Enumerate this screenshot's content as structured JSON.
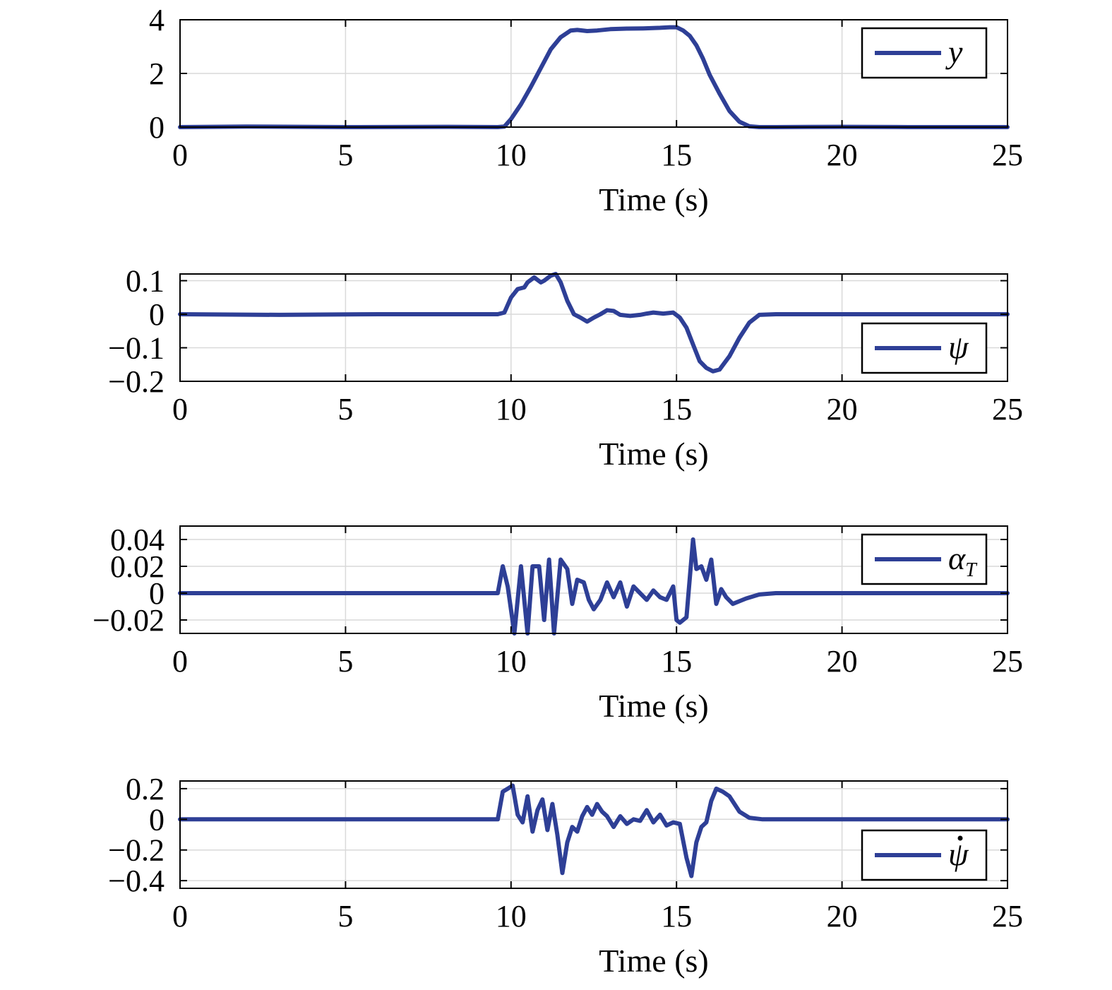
{
  "style": {
    "line_color": "#2e3f96",
    "grid_color": "#d9d9d9",
    "axis_color": "#000000"
  },
  "chart_data": [
    {
      "type": "line",
      "xlabel": "Time (s)",
      "ylabel": "",
      "xlim": [
        0,
        25
      ],
      "ylim": [
        0,
        4
      ],
      "xticks": [
        0,
        5,
        10,
        15,
        20,
        25
      ],
      "xtick_labels": [
        "0",
        "5",
        "10",
        "15",
        "20",
        "25"
      ],
      "yticks": [
        0,
        2,
        4
      ],
      "ytick_labels": [
        "0",
        "2",
        "4"
      ],
      "grid": true,
      "legend": {
        "position": "top-right",
        "main": "y",
        "sub": "",
        "dot": false
      },
      "series": [
        {
          "name": "y",
          "x": [
            0,
            2,
            5,
            8,
            9.6,
            9.8,
            10,
            10.3,
            10.6,
            10.9,
            11.2,
            11.5,
            11.8,
            12.0,
            12.3,
            12.6,
            13,
            13.5,
            14,
            14.5,
            14.8,
            15.0,
            15.2,
            15.4,
            15.6,
            15.8,
            16.0,
            16.3,
            16.6,
            16.9,
            17.2,
            17.5,
            18,
            20,
            22,
            25
          ],
          "values": [
            0,
            0.02,
            0,
            0.01,
            0,
            0.02,
            0.3,
            0.85,
            1.5,
            2.2,
            2.9,
            3.35,
            3.6,
            3.62,
            3.58,
            3.6,
            3.65,
            3.67,
            3.68,
            3.7,
            3.72,
            3.72,
            3.6,
            3.4,
            3.05,
            2.55,
            1.95,
            1.25,
            0.6,
            0.2,
            0.03,
            0,
            0,
            0.01,
            0,
            0
          ]
        }
      ]
    },
    {
      "type": "line",
      "xlabel": "Time (s)",
      "ylabel": "",
      "xlim": [
        0,
        25
      ],
      "ylim": [
        -0.2,
        0.12
      ],
      "xticks": [
        0,
        5,
        10,
        15,
        20,
        25
      ],
      "xtick_labels": [
        "0",
        "5",
        "10",
        "15",
        "20",
        "25"
      ],
      "yticks": [
        -0.2,
        -0.1,
        0,
        0.1
      ],
      "ytick_labels": [
        "−0.2",
        "−0.1",
        "0",
        "0.1"
      ],
      "grid": true,
      "legend": {
        "position": "bottom-right",
        "main": "ψ",
        "sub": "",
        "dot": false
      },
      "series": [
        {
          "name": "ψ",
          "x": [
            0,
            3,
            6,
            9.6,
            9.8,
            10.0,
            10.2,
            10.4,
            10.5,
            10.7,
            10.9,
            11.0,
            11.2,
            11.35,
            11.5,
            11.7,
            11.9,
            12.1,
            12.3,
            12.5,
            12.7,
            12.9,
            13.1,
            13.3,
            13.6,
            13.9,
            14.1,
            14.3,
            14.6,
            14.9,
            15.1,
            15.3,
            15.5,
            15.7,
            15.9,
            16.1,
            16.3,
            16.6,
            16.9,
            17.2,
            17.5,
            18,
            20,
            22,
            25
          ],
          "values": [
            0,
            -0.002,
            0,
            0,
            0.005,
            0.05,
            0.075,
            0.08,
            0.095,
            0.11,
            0.095,
            0.1,
            0.115,
            0.12,
            0.095,
            0.04,
            0,
            -0.01,
            -0.022,
            -0.01,
            0,
            0.012,
            0.01,
            -0.002,
            -0.005,
            -0.002,
            0.002,
            0.005,
            0.002,
            0.005,
            -0.01,
            -0.04,
            -0.09,
            -0.14,
            -0.16,
            -0.17,
            -0.165,
            -0.125,
            -0.07,
            -0.025,
            -0.002,
            0,
            0,
            0,
            0
          ]
        }
      ]
    },
    {
      "type": "line",
      "xlabel": "Time (s)",
      "ylabel": "",
      "xlim": [
        0,
        25
      ],
      "ylim": [
        -0.03,
        0.05
      ],
      "xticks": [
        0,
        5,
        10,
        15,
        20,
        25
      ],
      "xtick_labels": [
        "0",
        "5",
        "10",
        "15",
        "20",
        "25"
      ],
      "yticks": [
        -0.02,
        0,
        0.02,
        0.04
      ],
      "ytick_labels": [
        "−0.02",
        "0",
        "0.02",
        "0.04"
      ],
      "grid": true,
      "legend": {
        "position": "top-right",
        "main": "α",
        "sub": "T",
        "dot": false
      },
      "series": [
        {
          "name": "αT",
          "x": [
            0,
            3,
            6,
            9.6,
            9.75,
            9.9,
            10.1,
            10.3,
            10.5,
            10.65,
            10.85,
            11.0,
            11.15,
            11.3,
            11.5,
            11.7,
            11.85,
            12.0,
            12.2,
            12.35,
            12.5,
            12.7,
            12.9,
            13.1,
            13.3,
            13.5,
            13.7,
            13.9,
            14.1,
            14.3,
            14.5,
            14.7,
            14.9,
            15.0,
            15.1,
            15.3,
            15.5,
            15.6,
            15.75,
            15.9,
            16.05,
            16.2,
            16.35,
            16.5,
            16.7,
            16.9,
            17.1,
            17.5,
            18,
            20,
            22,
            25
          ],
          "values": [
            0,
            0,
            0,
            0,
            0.02,
            0.005,
            -0.03,
            0.02,
            -0.03,
            0.02,
            0.02,
            -0.02,
            0.025,
            -0.03,
            0.025,
            0.018,
            -0.008,
            0.01,
            0.008,
            -0.005,
            -0.012,
            -0.005,
            0.008,
            -0.003,
            0.008,
            -0.01,
            0.005,
            0,
            -0.005,
            0.002,
            -0.003,
            -0.005,
            0.005,
            -0.02,
            -0.022,
            -0.018,
            0.04,
            0.018,
            0.02,
            0.01,
            0.025,
            -0.008,
            0.003,
            -0.003,
            -0.008,
            -0.006,
            -0.004,
            -0.001,
            0,
            0,
            0,
            0
          ]
        }
      ]
    },
    {
      "type": "line",
      "xlabel": "Time (s)",
      "ylabel": "",
      "xlim": [
        0,
        25
      ],
      "ylim": [
        -0.45,
        0.25
      ],
      "xticks": [
        0,
        5,
        10,
        15,
        20,
        25
      ],
      "xtick_labels": [
        "0",
        "5",
        "10",
        "15",
        "20",
        "25"
      ],
      "yticks": [
        -0.4,
        -0.2,
        0,
        0.2
      ],
      "ytick_labels": [
        "−0.4",
        "−0.2",
        "0",
        "0.2"
      ],
      "grid": true,
      "legend": {
        "position": "bottom-right",
        "main": "ψ",
        "sub": "",
        "dot": true
      },
      "series": [
        {
          "name": "ψ̇",
          "x": [
            0,
            3,
            6,
            9.6,
            9.75,
            9.9,
            10.05,
            10.2,
            10.35,
            10.5,
            10.65,
            10.8,
            10.95,
            11.1,
            11.25,
            11.4,
            11.55,
            11.7,
            11.85,
            12.0,
            12.15,
            12.3,
            12.45,
            12.6,
            12.75,
            12.9,
            13.1,
            13.3,
            13.5,
            13.7,
            13.9,
            14.1,
            14.3,
            14.5,
            14.7,
            14.9,
            15.1,
            15.3,
            15.45,
            15.6,
            15.75,
            15.9,
            16.05,
            16.2,
            16.4,
            16.6,
            16.9,
            17.2,
            17.6,
            18,
            20,
            22,
            25
          ],
          "values": [
            0,
            0,
            0,
            0,
            0.18,
            0.2,
            0.22,
            0.03,
            -0.02,
            0.15,
            -0.08,
            0.06,
            0.13,
            -0.07,
            0.1,
            -0.1,
            -0.35,
            -0.15,
            -0.05,
            -0.08,
            0.02,
            0.08,
            0.03,
            0.1,
            0.05,
            0.02,
            -0.05,
            0.02,
            -0.03,
            0,
            -0.01,
            0.06,
            -0.02,
            0.03,
            -0.04,
            -0.02,
            -0.03,
            -0.25,
            -0.37,
            -0.15,
            -0.05,
            -0.02,
            0.12,
            0.2,
            0.18,
            0.15,
            0.05,
            0.01,
            0,
            0,
            0,
            0,
            0
          ]
        }
      ]
    }
  ]
}
